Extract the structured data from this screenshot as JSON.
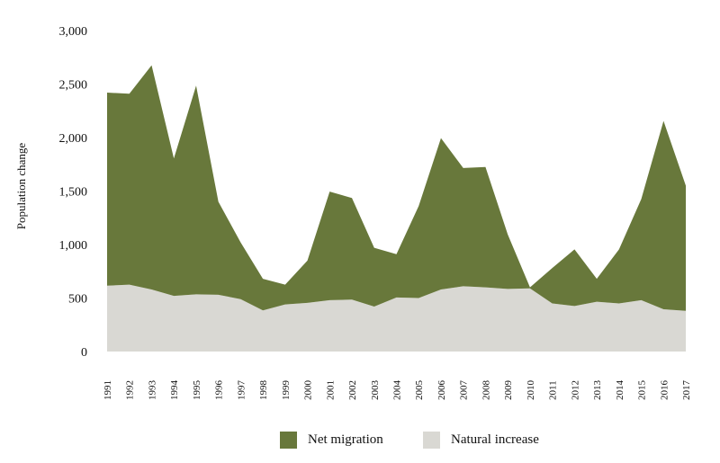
{
  "chart_data": {
    "type": "area",
    "stacked": true,
    "ylabel": "Population change",
    "xlabel": "",
    "ylim": [
      0,
      3000
    ],
    "yticks": [
      0,
      500,
      1000,
      1500,
      2000,
      2500,
      3000
    ],
    "ytick_labels": [
      "0",
      "500",
      "1,000",
      "1,500",
      "2,000",
      "2,500",
      "3,000"
    ],
    "grid": false,
    "legend_position": "bottom",
    "x": [
      "1991",
      "1992",
      "1993",
      "1994",
      "1995",
      "1996",
      "1997",
      "1998",
      "1999",
      "2000",
      "2001",
      "2002",
      "2003",
      "2004",
      "2005",
      "2006",
      "2007",
      "2008",
      "2009",
      "2010",
      "2011",
      "2012",
      "2013",
      "2014",
      "2015",
      "2016",
      "2017"
    ],
    "series": [
      {
        "name": "Natural increase",
        "color": "#d9d8d3",
        "values": [
          615,
          625,
          580,
          520,
          535,
          530,
          490,
          385,
          440,
          455,
          480,
          485,
          420,
          505,
          500,
          580,
          610,
          600,
          585,
          590,
          450,
          425,
          465,
          450,
          480,
          395,
          380
        ]
      },
      {
        "name": "Net migration",
        "color": "#68783b",
        "values": [
          1805,
          1785,
          2095,
          1285,
          1950,
          870,
          530,
          295,
          185,
          395,
          1015,
          950,
          550,
          405,
          860,
          1415,
          1105,
          1125,
          510,
          10,
          330,
          530,
          215,
          505,
          945,
          1760,
          1170
        ]
      }
    ]
  }
}
